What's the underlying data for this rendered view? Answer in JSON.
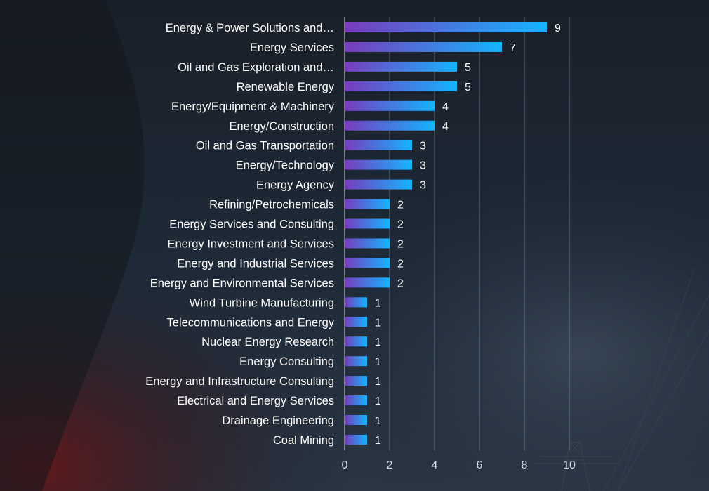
{
  "colors": {
    "bar_start": "#7a3bbd",
    "bar_end": "#14b4ff",
    "gridline": "#8aa0b8",
    "text": "#ffffff"
  },
  "chart_data": {
    "type": "bar",
    "orientation": "horizontal",
    "categories": [
      "Energy & Power Solutions and…",
      "Energy Services",
      "Oil and Gas Exploration and…",
      "Renewable Energy",
      "Energy/Equipment & Machinery",
      "Energy/Construction",
      "Oil and Gas Transportation",
      "Energy/Technology",
      "Energy Agency",
      "Refining/Petrochemicals",
      "Energy Services and Consulting",
      "Energy Investment and Services",
      "Energy and Industrial Services",
      "Energy and Environmental Services",
      "Wind Turbine Manufacturing",
      "Telecommunications and Energy",
      "Nuclear Energy Research",
      "Energy Consulting",
      "Energy and Infrastructure Consulting",
      "Electrical and Energy Services",
      "Drainage Engineering",
      "Coal Mining"
    ],
    "values": [
      9,
      7,
      5,
      5,
      4,
      4,
      3,
      3,
      3,
      2,
      2,
      2,
      2,
      2,
      1,
      1,
      1,
      1,
      1,
      1,
      1,
      1
    ],
    "xlim": [
      0,
      10
    ],
    "x_ticks": [
      "0",
      "2",
      "4",
      "6",
      "8",
      "10"
    ],
    "grid": true,
    "data_labels": true,
    "title": "",
    "xlabel": "",
    "ylabel": ""
  }
}
